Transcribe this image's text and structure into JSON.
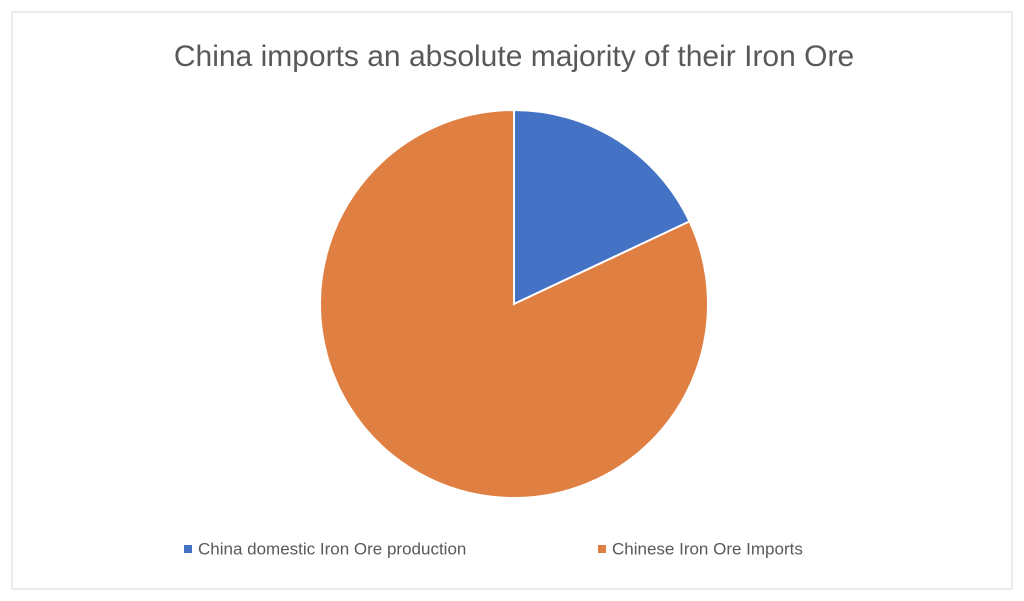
{
  "chart_data": {
    "type": "pie",
    "title": "China imports an absolute majority of their Iron Ore",
    "categories": [
      "China domestic Iron Ore production",
      "Chinese Iron Ore Imports"
    ],
    "values": [
      18,
      82
    ],
    "colors": [
      "#4472c4",
      "#e07f42"
    ],
    "legend": "bottom"
  }
}
